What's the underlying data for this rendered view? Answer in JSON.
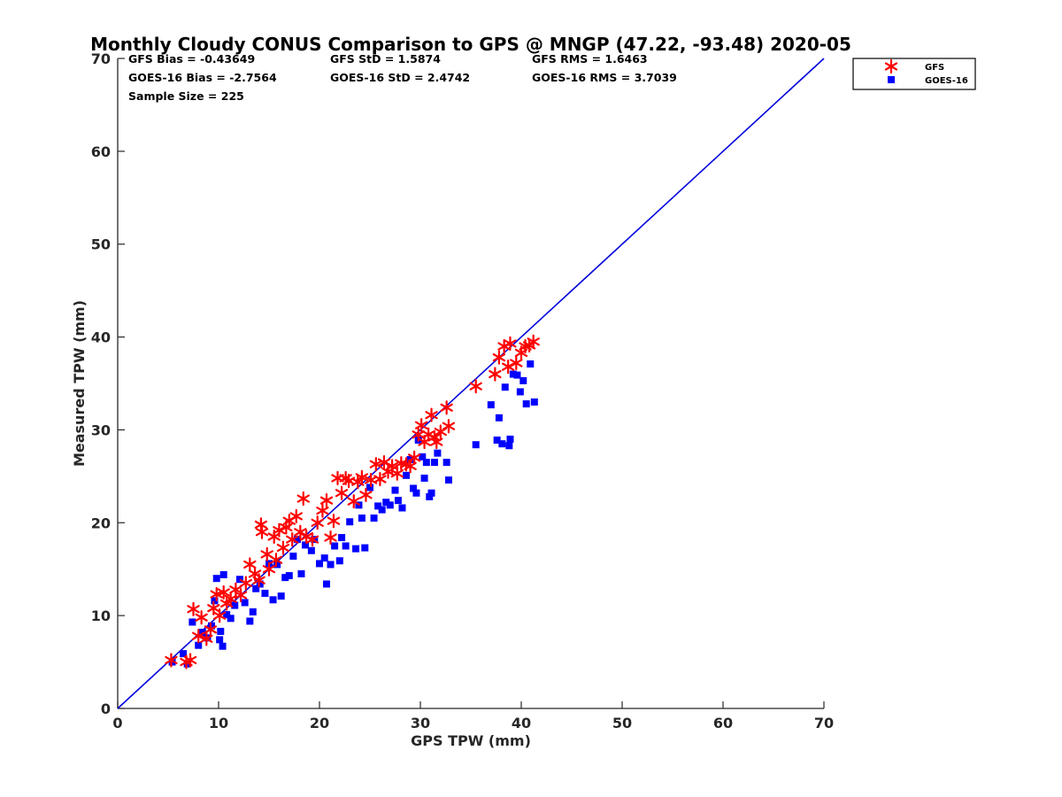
{
  "chart_data": {
    "type": "scatter",
    "title": "Monthly Cloudy CONUS Comparison to GPS @ MNGP (47.22, -93.48) 2020-05",
    "xlabel": "GPS TPW (mm)",
    "ylabel": "Measured TPW (mm)",
    "xlim": [
      0,
      70
    ],
    "ylim": [
      0,
      70
    ],
    "xticks": [
      0,
      10,
      20,
      30,
      40,
      50,
      60,
      70
    ],
    "yticks": [
      0,
      10,
      20,
      30,
      40,
      50,
      60,
      70
    ],
    "grid": false,
    "legend_position": "top-right",
    "stats": [
      "GFS Bias = -0.43649",
      "GFS StD = 1.5874",
      "GFS RMS = 1.6463",
      "GOES-16 Bias = -2.7564",
      "GOES-16 StD = 2.4742",
      "GOES-16 RMS = 3.7039",
      "Sample Size = 225"
    ],
    "reference_line": {
      "x": [
        0,
        70
      ],
      "y": [
        0,
        70
      ],
      "color": "#0000dd"
    },
    "series": [
      {
        "name": "GFS",
        "marker": "asterisk",
        "color": "#ff0000",
        "points": [
          [
            5.3,
            5.2
          ],
          [
            6.8,
            5.0
          ],
          [
            7.2,
            5.2
          ],
          [
            7.5,
            10.7
          ],
          [
            8.0,
            7.8
          ],
          [
            8.3,
            9.8
          ],
          [
            8.8,
            7.5
          ],
          [
            9.2,
            8.5
          ],
          [
            9.5,
            10.8
          ],
          [
            9.8,
            12.3
          ],
          [
            10.1,
            10.0
          ],
          [
            10.5,
            12.5
          ],
          [
            10.8,
            11.3
          ],
          [
            11.2,
            11.8
          ],
          [
            11.7,
            12.8
          ],
          [
            12.2,
            12.2
          ],
          [
            12.7,
            13.5
          ],
          [
            13.1,
            15.5
          ],
          [
            13.6,
            14.5
          ],
          [
            14.0,
            13.8
          ],
          [
            14.2,
            19.8
          ],
          [
            14.3,
            19.0
          ],
          [
            14.8,
            16.6
          ],
          [
            15.0,
            15.0
          ],
          [
            15.5,
            18.5
          ],
          [
            15.7,
            16.0
          ],
          [
            16.0,
            19.2
          ],
          [
            16.4,
            17.3
          ],
          [
            16.7,
            19.5
          ],
          [
            17.0,
            20.2
          ],
          [
            17.3,
            18.2
          ],
          [
            17.7,
            20.7
          ],
          [
            18.1,
            19.0
          ],
          [
            18.4,
            22.6
          ],
          [
            18.7,
            18.5
          ],
          [
            19.3,
            18.2
          ],
          [
            19.8,
            20.0
          ],
          [
            20.3,
            21.3
          ],
          [
            20.7,
            22.4
          ],
          [
            21.1,
            18.4
          ],
          [
            21.4,
            20.2
          ],
          [
            21.8,
            24.8
          ],
          [
            22.2,
            23.2
          ],
          [
            22.6,
            24.8
          ],
          [
            22.9,
            24.5
          ],
          [
            23.4,
            22.3
          ],
          [
            23.8,
            24.4
          ],
          [
            24.2,
            24.9
          ],
          [
            24.6,
            23.0
          ],
          [
            25.1,
            24.6
          ],
          [
            25.6,
            26.3
          ],
          [
            26.0,
            24.7
          ],
          [
            26.4,
            26.5
          ],
          [
            26.8,
            25.5
          ],
          [
            27.2,
            26.1
          ],
          [
            27.7,
            25.3
          ],
          [
            28.1,
            26.4
          ],
          [
            28.6,
            26.3
          ],
          [
            29.0,
            26.1
          ],
          [
            29.4,
            27.0
          ],
          [
            29.8,
            29.5
          ],
          [
            30.1,
            30.5
          ],
          [
            30.4,
            28.7
          ],
          [
            30.8,
            29.5
          ],
          [
            31.1,
            31.6
          ],
          [
            31.4,
            29.2
          ],
          [
            31.6,
            28.7
          ],
          [
            32.0,
            29.8
          ],
          [
            32.6,
            32.4
          ],
          [
            32.8,
            30.4
          ],
          [
            35.5,
            34.7
          ],
          [
            37.4,
            36.0
          ],
          [
            37.8,
            37.8
          ],
          [
            38.3,
            39.0
          ],
          [
            38.7,
            36.8
          ],
          [
            38.9,
            39.3
          ],
          [
            39.5,
            37.2
          ],
          [
            40.0,
            38.3
          ],
          [
            40.4,
            39.0
          ],
          [
            40.8,
            39.1
          ],
          [
            41.2,
            39.5
          ]
        ]
      },
      {
        "name": "GOES-16",
        "marker": "square",
        "color": "#0000ff",
        "points": [
          [
            5.4,
            5.0
          ],
          [
            6.5,
            5.9
          ],
          [
            6.9,
            4.8
          ],
          [
            7.4,
            9.3
          ],
          [
            8.0,
            6.8
          ],
          [
            8.4,
            8.2
          ],
          [
            8.9,
            7.6
          ],
          [
            9.3,
            8.9
          ],
          [
            9.6,
            11.6
          ],
          [
            9.8,
            14.0
          ],
          [
            10.1,
            7.4
          ],
          [
            10.2,
            8.3
          ],
          [
            10.4,
            6.7
          ],
          [
            10.5,
            14.4
          ],
          [
            10.8,
            10.1
          ],
          [
            11.2,
            9.7
          ],
          [
            11.6,
            11.1
          ],
          [
            12.1,
            13.9
          ],
          [
            12.6,
            11.4
          ],
          [
            13.1,
            9.4
          ],
          [
            13.4,
            10.4
          ],
          [
            13.7,
            12.9
          ],
          [
            14.1,
            13.4
          ],
          [
            14.6,
            12.4
          ],
          [
            15.0,
            15.6
          ],
          [
            15.4,
            11.7
          ],
          [
            15.8,
            15.5
          ],
          [
            16.2,
            12.1
          ],
          [
            16.6,
            14.1
          ],
          [
            17.0,
            14.3
          ],
          [
            17.4,
            16.4
          ],
          [
            17.8,
            18.2
          ],
          [
            18.2,
            14.5
          ],
          [
            18.6,
            17.6
          ],
          [
            19.2,
            17.0
          ],
          [
            19.5,
            18.2
          ],
          [
            20.0,
            15.6
          ],
          [
            20.5,
            16.2
          ],
          [
            20.7,
            13.4
          ],
          [
            21.1,
            15.5
          ],
          [
            21.5,
            17.5
          ],
          [
            22.0,
            15.9
          ],
          [
            22.2,
            18.4
          ],
          [
            22.6,
            17.5
          ],
          [
            23.0,
            20.1
          ],
          [
            23.6,
            17.2
          ],
          [
            23.9,
            21.9
          ],
          [
            24.2,
            20.5
          ],
          [
            24.5,
            17.3
          ],
          [
            25.0,
            23.8
          ],
          [
            25.4,
            20.5
          ],
          [
            25.8,
            21.8
          ],
          [
            26.2,
            21.4
          ],
          [
            26.6,
            22.2
          ],
          [
            27.0,
            21.9
          ],
          [
            27.5,
            23.5
          ],
          [
            27.8,
            22.4
          ],
          [
            28.2,
            21.6
          ],
          [
            28.6,
            25.1
          ],
          [
            29.0,
            26.8
          ],
          [
            29.3,
            23.7
          ],
          [
            29.6,
            23.2
          ],
          [
            29.8,
            28.9
          ],
          [
            30.2,
            27.1
          ],
          [
            30.4,
            24.8
          ],
          [
            30.6,
            26.5
          ],
          [
            30.9,
            22.8
          ],
          [
            31.1,
            23.2
          ],
          [
            31.4,
            26.5
          ],
          [
            31.7,
            27.5
          ],
          [
            32.6,
            26.5
          ],
          [
            32.8,
            24.6
          ],
          [
            35.5,
            28.4
          ],
          [
            37.0,
            32.7
          ],
          [
            37.6,
            28.9
          ],
          [
            37.8,
            31.3
          ],
          [
            38.1,
            28.5
          ],
          [
            38.4,
            34.6
          ],
          [
            38.9,
            29.0
          ],
          [
            38.8,
            28.3
          ],
          [
            39.2,
            36.0
          ],
          [
            39.6,
            35.9
          ],
          [
            39.9,
            34.1
          ],
          [
            40.2,
            35.3
          ],
          [
            40.5,
            32.8
          ],
          [
            40.9,
            37.1
          ],
          [
            41.3,
            33.0
          ]
        ]
      }
    ]
  }
}
